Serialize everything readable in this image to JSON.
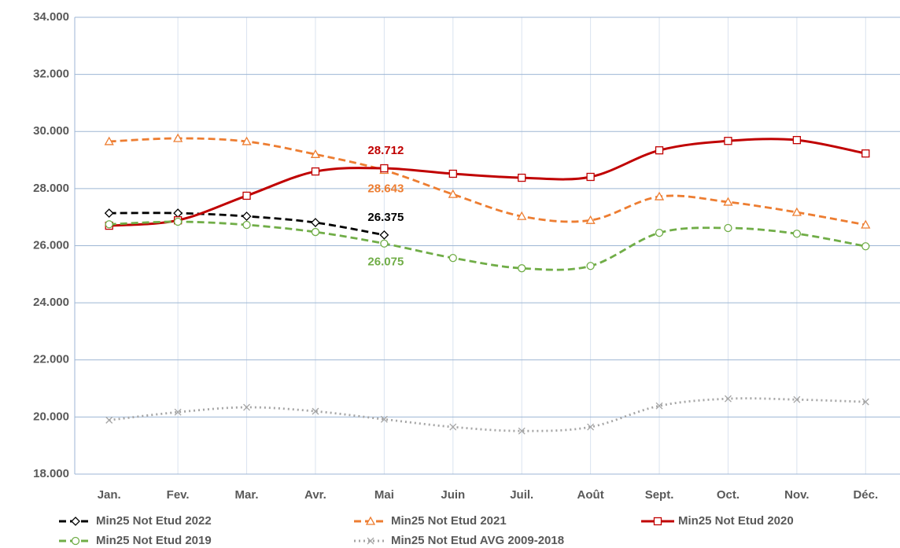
{
  "chart_data": {
    "type": "line",
    "categories": [
      "Jan.",
      "Fev.",
      "Mar.",
      "Avr.",
      "Mai",
      "Juin",
      "Juil.",
      "Août",
      "Sept.",
      "Oct.",
      "Nov.",
      "Déc."
    ],
    "ylim": [
      18000,
      34000
    ],
    "yticks": [
      {
        "value": 18000,
        "label": "18.000"
      },
      {
        "value": 20000,
        "label": "20.000"
      },
      {
        "value": 22000,
        "label": "22.000"
      },
      {
        "value": 24000,
        "label": "24.000"
      },
      {
        "value": 26000,
        "label": "26.000"
      },
      {
        "value": 28000,
        "label": "28.000"
      },
      {
        "value": 30000,
        "label": "30.000"
      },
      {
        "value": 32000,
        "label": "32.000"
      },
      {
        "value": 34000,
        "label": "34.000"
      }
    ],
    "grid": true,
    "legend": "bottom",
    "series": [
      {
        "name": "Min25 Not Etud 2022",
        "color": "#000000",
        "marker": "diamond",
        "dash": true,
        "values": [
          27140,
          27140,
          27030,
          26810,
          26375,
          null,
          null,
          null,
          null,
          null,
          null,
          null
        ],
        "value_labels": [
          null,
          null,
          null,
          null,
          "26.375",
          null,
          null,
          null,
          null,
          null,
          null,
          null
        ],
        "label_pos": "above"
      },
      {
        "name": "Min25 Not Etud 2021",
        "color": "#ed7d31",
        "marker": "triangle",
        "dash": true,
        "values": [
          29650,
          29760,
          29650,
          29200,
          28643,
          27800,
          27030,
          26890,
          27720,
          27530,
          27170,
          26730
        ],
        "value_labels": [
          null,
          null,
          null,
          null,
          "28.643",
          null,
          null,
          null,
          null,
          null,
          null,
          null
        ],
        "label_pos": "below"
      },
      {
        "name": "Min25 Not Etud 2020",
        "color": "#c00000",
        "marker": "square",
        "dash": false,
        "values": [
          26700,
          26890,
          27750,
          28600,
          28712,
          28520,
          28380,
          28410,
          29340,
          29670,
          29700,
          29230
        ],
        "value_labels": [
          null,
          null,
          null,
          null,
          "28.712",
          null,
          null,
          null,
          null,
          null,
          null,
          null
        ],
        "label_pos": "above"
      },
      {
        "name": "Min25 Not Etud 2019",
        "color": "#70ad47",
        "marker": "circle",
        "dash": true,
        "values": [
          26750,
          26840,
          26730,
          26480,
          26075,
          25570,
          25210,
          25290,
          26450,
          26620,
          26420,
          25980
        ],
        "value_labels": [
          null,
          null,
          null,
          null,
          "26.075",
          null,
          null,
          null,
          null,
          null,
          null,
          null
        ],
        "label_pos": "below"
      },
      {
        "name": "Min25 Not Etud AVG 2009-2018",
        "color": "#a5a5a5",
        "marker": "x",
        "dash": "dot",
        "values": [
          19890,
          20170,
          20340,
          20200,
          19920,
          19650,
          19510,
          19650,
          20390,
          20640,
          20610,
          20530
        ],
        "value_labels": [
          null,
          null,
          null,
          null,
          null,
          null,
          null,
          null,
          null,
          null,
          null,
          null
        ],
        "label_pos": "above"
      }
    ]
  }
}
